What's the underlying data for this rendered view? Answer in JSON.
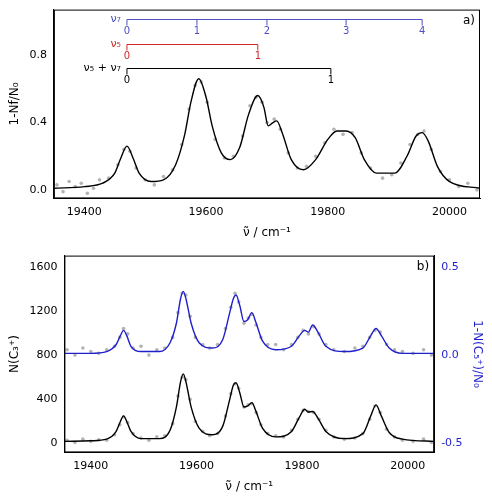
{
  "chart_data": [
    {
      "type": "scatter",
      "panel_label": "a)",
      "x_label": "ν̃ / cm⁻¹",
      "y_label": "1-Nf/N₀",
      "xlim": [
        19350,
        20050
      ],
      "xticks": [
        19400,
        19600,
        19800,
        20000
      ],
      "ylim": [
        -0.05,
        1.07
      ],
      "yticks": [
        {
          "value": 0,
          "label": "0.0"
        },
        {
          "value": 0.4,
          "label": "0.4"
        },
        {
          "value": 0.8,
          "label": "0.8"
        }
      ],
      "grid": false,
      "annotations": [
        {
          "text": "ν₇",
          "color": "#4f4fbf",
          "positions": [
            19470,
            19585,
            19700,
            19830,
            19955
          ],
          "labels": [
            "0",
            "1",
            "2",
            "3",
            "4"
          ]
        },
        {
          "text": "ν₅",
          "color": "#cc2a2a",
          "positions": [
            19470,
            19685
          ],
          "labels": [
            "0",
            "1"
          ]
        },
        {
          "text": "ν₅ + ν₇",
          "color": "#000000",
          "positions": [
            19470,
            19805
          ],
          "labels": [
            "0",
            "1"
          ]
        }
      ],
      "series": [
        {
          "type": "scatter",
          "color": "#b4b4b4",
          "marker": "circle",
          "x": [
            19355,
            19365,
            19375,
            19385,
            19395,
            19405,
            19415,
            19425,
            19440,
            19455,
            19465,
            19475,
            19485,
            19500,
            19515,
            19530,
            19545,
            19560,
            19572,
            19582,
            19592,
            19602,
            19615,
            19630,
            19645,
            19660,
            19672,
            19682,
            19692,
            19700,
            19712,
            19722,
            19735,
            19750,
            19765,
            19780,
            19795,
            19810,
            19825,
            19840,
            19855,
            19870,
            19890,
            19905,
            19920,
            19935,
            19948,
            19958,
            19970,
            19985,
            20000,
            20015,
            20030,
            20045
          ],
          "values": [
            0.03,
            -0.01,
            0.05,
            0.02,
            0.04,
            -0.02,
            0.01,
            0.06,
            0.07,
            0.15,
            0.24,
            0.23,
            0.13,
            0.06,
            0.03,
            0.08,
            0.12,
            0.27,
            0.48,
            0.62,
            0.64,
            0.52,
            0.3,
            0.19,
            0.2,
            0.32,
            0.5,
            0.55,
            0.52,
            0.4,
            0.42,
            0.36,
            0.22,
            0.13,
            0.14,
            0.2,
            0.28,
            0.36,
            0.33,
            0.34,
            0.22,
            0.13,
            0.07,
            0.09,
            0.16,
            0.27,
            0.33,
            0.35,
            0.24,
            0.11,
            0.06,
            0.02,
            0.04,
            0.0
          ]
        },
        {
          "type": "line",
          "color": "#000000",
          "line_style": "solid",
          "x": [
            19350,
            19400,
            19430,
            19450,
            19460,
            19470,
            19480,
            19490,
            19510,
            19530,
            19550,
            19565,
            19575,
            19588,
            19600,
            19610,
            19625,
            19640,
            19655,
            19670,
            19685,
            19695,
            19702,
            19710,
            19716,
            19725,
            19740,
            19760,
            19780,
            19800,
            19815,
            19830,
            19845,
            19860,
            19880,
            19910,
            19930,
            19945,
            19955,
            19965,
            19980,
            20000,
            20050
          ],
          "values": [
            0.01,
            0.02,
            0.04,
            0.1,
            0.19,
            0.26,
            0.19,
            0.1,
            0.05,
            0.06,
            0.15,
            0.33,
            0.52,
            0.66,
            0.55,
            0.38,
            0.22,
            0.18,
            0.25,
            0.45,
            0.56,
            0.49,
            0.38,
            0.4,
            0.41,
            0.34,
            0.18,
            0.12,
            0.18,
            0.3,
            0.35,
            0.35,
            0.31,
            0.18,
            0.1,
            0.1,
            0.2,
            0.32,
            0.34,
            0.29,
            0.14,
            0.05,
            0.01
          ]
        }
      ]
    },
    {
      "type": "scatter",
      "panel_label": "b)",
      "x_label": "ν̃ / cm⁻¹",
      "y_label": "N(C₃⁺)",
      "y2_label": "1-N(C₅⁺)/N₀",
      "xlim": [
        19350,
        20050
      ],
      "xticks": [
        19400,
        19600,
        19800,
        20000
      ],
      "ylim": [
        -80,
        1700
      ],
      "yticks": [
        0,
        400,
        800,
        1200,
        1600
      ],
      "y2lim": [
        -0.55,
        0.5625
      ],
      "y2ticks": [
        {
          "value": -0.5,
          "label": "-0.5"
        },
        {
          "value": 0,
          "label": "0.0"
        },
        {
          "value": 0.5,
          "label": "0.5"
        }
      ],
      "y2_color": "#1f1fcc",
      "grid": false,
      "series": [
        {
          "type": "scatter",
          "color": "#b4b4b4",
          "marker": "circle",
          "axis": "y2",
          "x": [
            19355,
            19370,
            19385,
            19400,
            19415,
            19430,
            19445,
            19455,
            19462,
            19470,
            19480,
            19495,
            19510,
            19525,
            19540,
            19555,
            19565,
            19573,
            19580,
            19588,
            19598,
            19612,
            19625,
            19640,
            19655,
            19665,
            19673,
            19680,
            19690,
            19698,
            19705,
            19713,
            19722,
            19735,
            19750,
            19765,
            19780,
            19792,
            19802,
            19812,
            19822,
            19832,
            19845,
            19860,
            19880,
            19900,
            19915,
            19928,
            19938,
            19948,
            19960,
            19975,
            19990,
            20010,
            20030,
            20045
          ],
          "values": [
            0.03,
            0.0,
            0.04,
            0.02,
            0.01,
            0.03,
            0.05,
            0.1,
            0.15,
            0.12,
            0.04,
            0.05,
            0.0,
            0.03,
            0.04,
            0.1,
            0.24,
            0.35,
            0.34,
            0.22,
            0.1,
            0.06,
            0.04,
            0.06,
            0.15,
            0.27,
            0.35,
            0.3,
            0.18,
            0.21,
            0.23,
            0.17,
            0.1,
            0.06,
            0.06,
            0.03,
            0.06,
            0.1,
            0.14,
            0.12,
            0.16,
            0.12,
            0.06,
            0.03,
            0.02,
            0.04,
            0.05,
            0.1,
            0.14,
            0.13,
            0.06,
            0.03,
            0.02,
            0.01,
            0.03,
            0.0
          ]
        },
        {
          "type": "line",
          "color": "#1f1fcc",
          "line_style": "solid",
          "axis": "y2",
          "x": [
            19350,
            19400,
            19430,
            19448,
            19456,
            19462,
            19468,
            19476,
            19495,
            19530,
            19550,
            19562,
            19570,
            19575,
            19580,
            19590,
            19605,
            19630,
            19650,
            19663,
            19670,
            19675,
            19682,
            19690,
            19697,
            19705,
            19712,
            19725,
            19750,
            19780,
            19795,
            19805,
            19812,
            19820,
            19830,
            19845,
            19880,
            19915,
            19930,
            19940,
            19950,
            19965,
            19990,
            20050
          ],
          "values": [
            0.01,
            0.01,
            0.02,
            0.06,
            0.11,
            0.14,
            0.11,
            0.05,
            0.02,
            0.02,
            0.07,
            0.18,
            0.32,
            0.36,
            0.32,
            0.18,
            0.07,
            0.04,
            0.09,
            0.24,
            0.32,
            0.34,
            0.28,
            0.19,
            0.2,
            0.24,
            0.19,
            0.08,
            0.03,
            0.05,
            0.11,
            0.14,
            0.13,
            0.17,
            0.13,
            0.05,
            0.02,
            0.04,
            0.11,
            0.15,
            0.11,
            0.04,
            0.01,
            0.01
          ]
        },
        {
          "type": "scatter",
          "color": "#b4b4b4",
          "marker": "circle",
          "x": [
            19355,
            19370,
            19385,
            19400,
            19415,
            19430,
            19445,
            19455,
            19462,
            19470,
            19480,
            19495,
            19510,
            19525,
            19540,
            19555,
            19565,
            19573,
            19580,
            19588,
            19598,
            19612,
            19625,
            19640,
            19655,
            19665,
            19673,
            19680,
            19690,
            19698,
            19705,
            19713,
            19722,
            19735,
            19750,
            19765,
            19780,
            19792,
            19802,
            19812,
            19822,
            19832,
            19845,
            19860,
            19880,
            19900,
            19915,
            19928,
            19938,
            19948,
            19960,
            19975,
            19990,
            20010,
            20030,
            20045
          ],
          "values": [
            30,
            10,
            40,
            20,
            35,
            30,
            80,
            170,
            240,
            190,
            90,
            50,
            30,
            60,
            70,
            180,
            430,
            600,
            580,
            400,
            200,
            110,
            70,
            90,
            250,
            450,
            540,
            500,
            330,
            350,
            360,
            280,
            170,
            90,
            70,
            60,
            120,
            220,
            300,
            290,
            280,
            220,
            120,
            60,
            40,
            50,
            90,
            220,
            340,
            280,
            130,
            60,
            30,
            20,
            40,
            10
          ]
        },
        {
          "type": "line",
          "color": "#000000",
          "line_style": "solid",
          "x": [
            19350,
            19400,
            19430,
            19448,
            19456,
            19462,
            19468,
            19476,
            19495,
            19530,
            19550,
            19562,
            19570,
            19575,
            19580,
            19590,
            19605,
            19630,
            19650,
            19663,
            19670,
            19675,
            19682,
            19690,
            19697,
            19705,
            19712,
            19725,
            19750,
            19780,
            19795,
            19805,
            19812,
            19820,
            19830,
            19845,
            19880,
            19915,
            19930,
            19940,
            19950,
            19965,
            19990,
            20050
          ],
          "values": [
            20,
            25,
            40,
            110,
            200,
            250,
            200,
            110,
            45,
            45,
            120,
            330,
            560,
            630,
            560,
            330,
            140,
            80,
            160,
            400,
            530,
            550,
            460,
            330,
            340,
            370,
            300,
            140,
            60,
            110,
            240,
            310,
            285,
            290,
            230,
            110,
            45,
            90,
            250,
            350,
            250,
            100,
            40,
            20
          ]
        }
      ]
    }
  ]
}
